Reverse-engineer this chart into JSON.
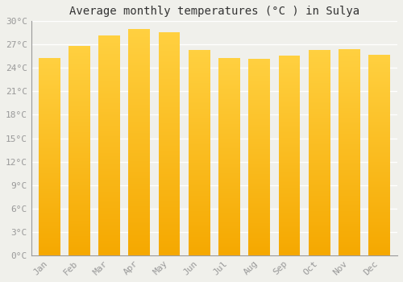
{
  "title": "Average monthly temperatures (°C ) in Sulya",
  "months": [
    "Jan",
    "Feb",
    "Mar",
    "Apr",
    "May",
    "Jun",
    "Jul",
    "Aug",
    "Sep",
    "Oct",
    "Nov",
    "Dec"
  ],
  "temperatures": [
    25.3,
    26.8,
    28.2,
    29.0,
    28.6,
    26.3,
    25.3,
    25.2,
    25.6,
    26.3,
    26.4,
    25.7
  ],
  "bar_color_bottom": "#F5A800",
  "bar_color_top": "#FFD040",
  "ylim": [
    0,
    30
  ],
  "yticks": [
    0,
    3,
    6,
    9,
    12,
    15,
    18,
    21,
    24,
    27,
    30
  ],
  "ytick_labels": [
    "0°C",
    "3°C",
    "6°C",
    "9°C",
    "12°C",
    "15°C",
    "18°C",
    "21°C",
    "24°C",
    "27°C",
    "30°C"
  ],
  "background_color": "#f0f0eb",
  "grid_color": "#ffffff",
  "title_fontsize": 10,
  "tick_fontsize": 8,
  "font_family": "monospace",
  "tick_color": "#999999",
  "title_color": "#333333"
}
